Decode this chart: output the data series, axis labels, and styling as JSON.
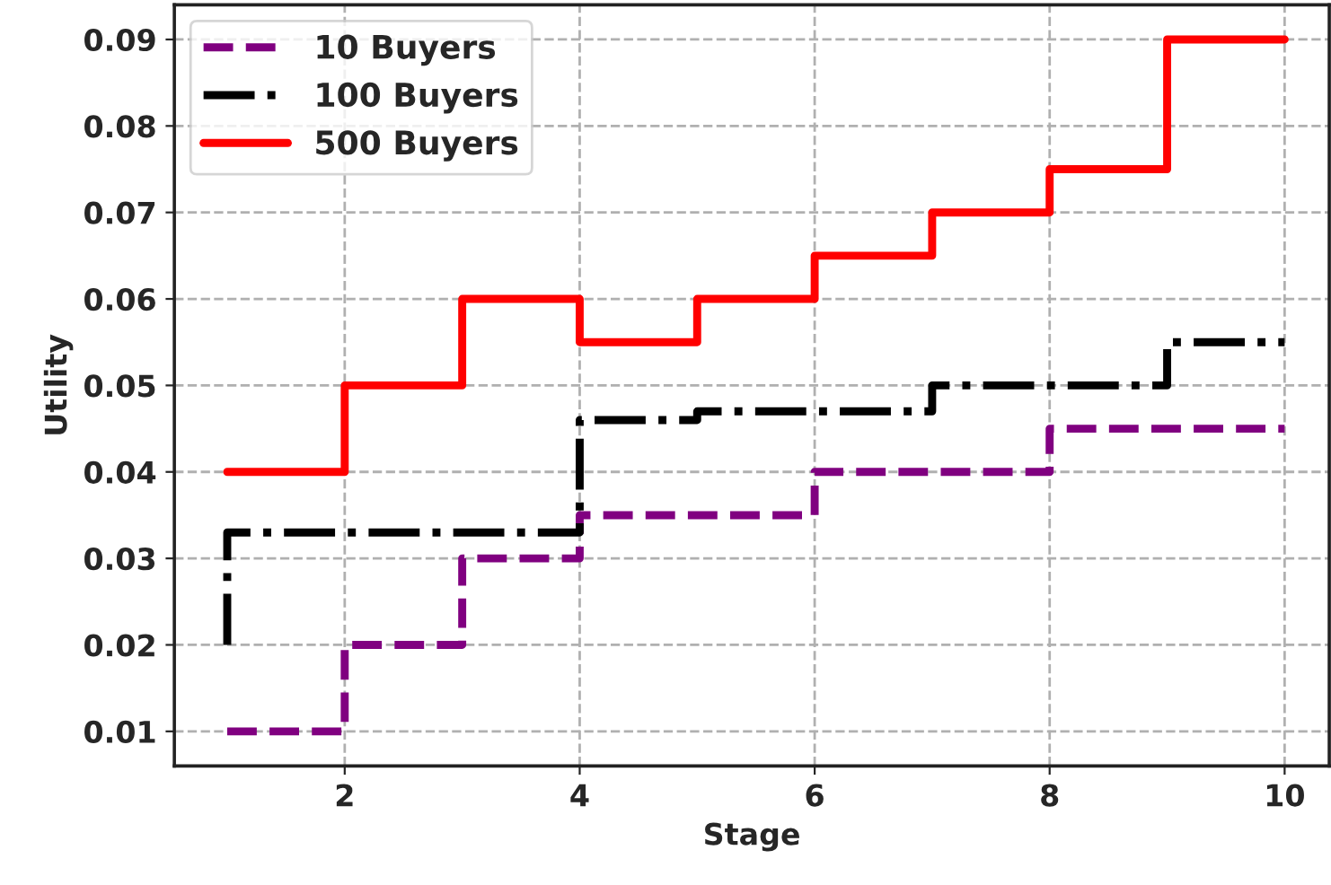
{
  "chart_data": {
    "type": "step",
    "xlabel": "Stage",
    "ylabel": "Utility",
    "x": [
      1,
      2,
      3,
      4,
      5,
      6,
      7,
      8,
      9,
      10
    ],
    "series": [
      {
        "name": "10 Buyers",
        "color": "#800080",
        "line_style": "dashed",
        "values": [
          0.01,
          0.01,
          0.02,
          0.03,
          0.035,
          0.035,
          0.04,
          0.04,
          0.045,
          0.045
        ]
      },
      {
        "name": "100 Buyers",
        "color": "#000000",
        "line_style": "dashdot",
        "values": [
          0.02,
          0.033,
          0.033,
          0.033,
          0.046,
          0.047,
          0.047,
          0.05,
          0.05,
          0.055
        ]
      },
      {
        "name": "500 Buyers",
        "color": "#ff0000",
        "line_style": "solid",
        "values": [
          0.04,
          0.04,
          0.05,
          0.06,
          0.055,
          0.06,
          0.065,
          0.07,
          0.075,
          0.09
        ]
      }
    ],
    "xlim": [
      0.55,
      10.38
    ],
    "ylim": [
      0.006,
      0.094
    ],
    "xticks": [
      2,
      4,
      6,
      8,
      10
    ],
    "yticks": [
      0.01,
      0.02,
      0.03,
      0.04,
      0.05,
      0.06,
      0.07,
      0.08,
      0.09
    ],
    "grid": true,
    "legend": "top left"
  }
}
